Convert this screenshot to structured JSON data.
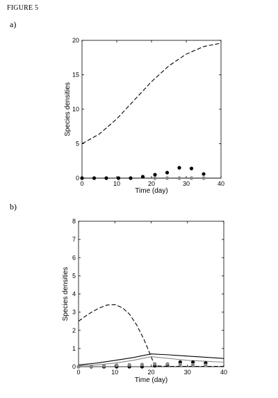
{
  "figure": {
    "label": "FIGURE 5"
  },
  "chart_data": [
    {
      "panel_label": "a)",
      "type": "line",
      "xlabel": "Time (day)",
      "ylabel": "Species densities",
      "xlim": [
        0,
        40
      ],
      "ylim": [
        0,
        20
      ],
      "xticks": [
        0,
        10,
        20,
        30,
        40
      ],
      "yticks": [
        0,
        5,
        10,
        15,
        20
      ],
      "series": [
        {
          "style": "dashed",
          "color": "#000000",
          "x": [
            0,
            5,
            10,
            15,
            20,
            25,
            30,
            35,
            40
          ],
          "y": [
            5.0,
            6.4,
            8.6,
            11.3,
            14.0,
            16.3,
            18.0,
            19.1,
            19.6
          ]
        },
        {
          "style": "solid",
          "color": "#000000",
          "x": [
            0,
            40
          ],
          "y": [
            0,
            0
          ]
        },
        {
          "style": "markers",
          "color": "#000000",
          "x": [
            0,
            3.5,
            7,
            10.5,
            14,
            17.5,
            21,
            24.5,
            28,
            31.5,
            35
          ],
          "y": [
            0.0,
            0.0,
            0.0,
            0.0,
            0.0,
            0.2,
            0.5,
            0.8,
            1.5,
            1.4,
            0.6
          ]
        },
        {
          "style": "markers",
          "color": "#888888",
          "x": [
            21,
            24.5,
            28,
            31.5,
            35
          ],
          "y": [
            0.0,
            0.0,
            0.0,
            0.0,
            0.0
          ]
        }
      ]
    },
    {
      "panel_label": "b)",
      "type": "line",
      "xlabel": "Time (day)",
      "ylabel": "Species densities",
      "xlim": [
        0,
        40
      ],
      "ylim": [
        0,
        8
      ],
      "xticks": [
        0,
        10,
        20,
        30,
        40
      ],
      "yticks": [
        0,
        1,
        2,
        3,
        4,
        5,
        6,
        7,
        8
      ],
      "series": [
        {
          "style": "dashed",
          "color": "#000000",
          "x": [
            0,
            2,
            4,
            6,
            8,
            10,
            12,
            14,
            16,
            18,
            20,
            21,
            24,
            28,
            32,
            36,
            40
          ],
          "y": [
            2.5,
            2.8,
            3.05,
            3.25,
            3.4,
            3.42,
            3.25,
            2.9,
            2.3,
            1.5,
            0.55,
            0.05,
            0.02,
            0.02,
            0.02,
            0.02,
            0.02
          ]
        },
        {
          "style": "solid",
          "color": "#000000",
          "x": [
            0,
            5,
            10,
            15,
            20,
            25,
            30,
            35,
            40
          ],
          "y": [
            0.1,
            0.2,
            0.35,
            0.5,
            0.7,
            0.65,
            0.58,
            0.52,
            0.45
          ]
        },
        {
          "style": "solid",
          "color": "#888888",
          "x": [
            0,
            5,
            10,
            15,
            20,
            25,
            30,
            35,
            40
          ],
          "y": [
            0.05,
            0.1,
            0.2,
            0.35,
            0.55,
            0.45,
            0.35,
            0.3,
            0.25
          ]
        },
        {
          "style": "markers",
          "color": "#000000",
          "x": [
            0,
            3.5,
            7,
            10.5,
            14,
            17.5,
            21,
            24.5,
            28,
            31.5,
            35
          ],
          "y": [
            0.0,
            0.0,
            0.0,
            0.0,
            0.0,
            0.0,
            0.05,
            0.1,
            0.25,
            0.25,
            0.2
          ]
        },
        {
          "style": "markers",
          "color": "#888888",
          "x": [
            0,
            3.5,
            7,
            10.5,
            14,
            17.5,
            21,
            24.5,
            28,
            31.5,
            35
          ],
          "y": [
            0.0,
            0.02,
            0.05,
            0.08,
            0.1,
            0.12,
            0.15,
            0.15,
            0.12,
            0.1,
            0.08
          ]
        }
      ]
    }
  ]
}
